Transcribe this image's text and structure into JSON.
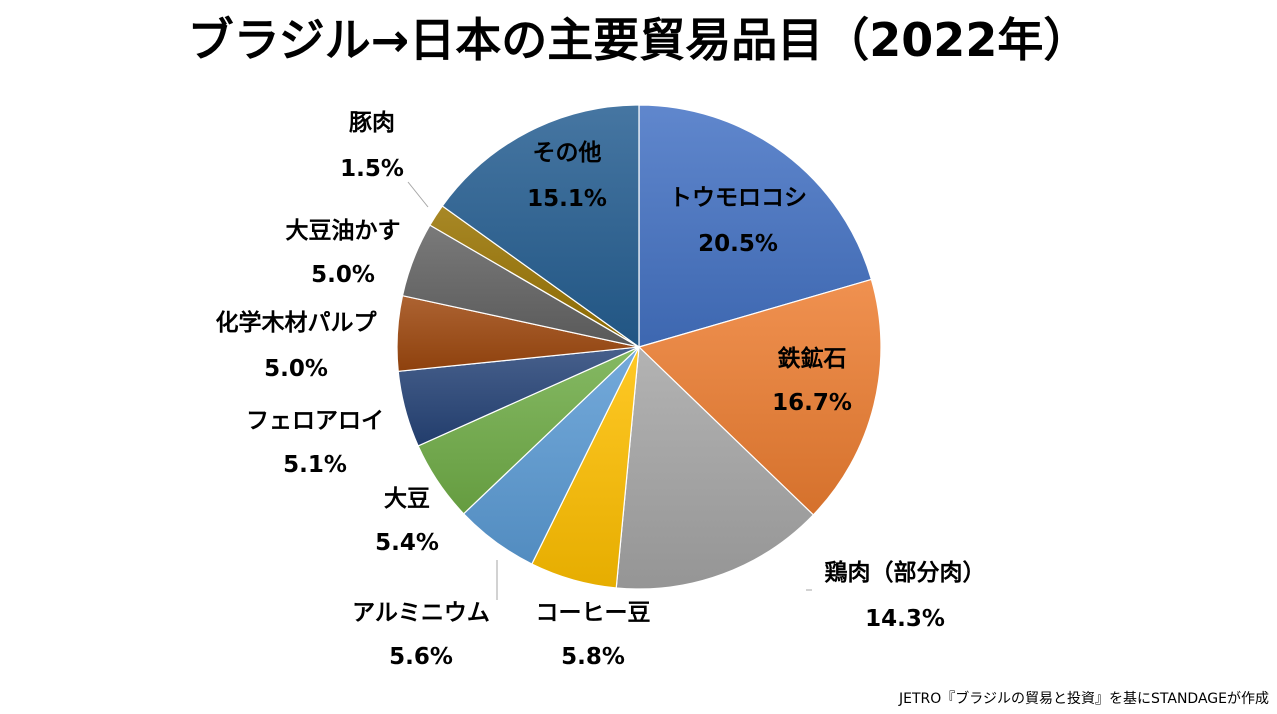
{
  "chart_data": {
    "type": "pie",
    "title": "ブラジル→日本の主要貿易品目（2022年）",
    "unit": "%",
    "slices": [
      {
        "name": "トウモロコシ",
        "value": 20.5,
        "label": "20.5%",
        "color": "#4472c4"
      },
      {
        "name": "鉄鉱石",
        "value": 16.7,
        "label": "16.7%",
        "color": "#ed7d31"
      },
      {
        "name": "鶏肉（部分肉）",
        "value": 14.3,
        "label": "14.3%",
        "color": "#a5a5a5"
      },
      {
        "name": "コーヒー豆",
        "value": 5.8,
        "label": "5.8%",
        "color": "#ffc000"
      },
      {
        "name": "アルミニウム",
        "value": 5.6,
        "label": "5.6%",
        "color": "#5b9bd5"
      },
      {
        "name": "大豆",
        "value": 5.4,
        "label": "5.4%",
        "color": "#70ad47"
      },
      {
        "name": "フェロアロイ",
        "value": 5.1,
        "label": "5.1%",
        "color": "#264478"
      },
      {
        "name": "化学木材パルプ",
        "value": 5.0,
        "label": "5.0%",
        "color": "#9e480e"
      },
      {
        "name": "大豆油かす",
        "value": 5.0,
        "label": "5.0%",
        "color": "#636363"
      },
      {
        "name": "豚肉",
        "value": 1.5,
        "label": "1.5%",
        "color": "#997300"
      },
      {
        "name": "その他",
        "value": 15.1,
        "label": "15.1%",
        "color": "#255e91"
      }
    ]
  },
  "source": "JETRO『ブラジルの貿易と投資』を基にSTANDAGEが作成"
}
